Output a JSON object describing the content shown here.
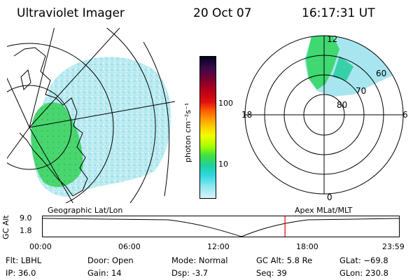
{
  "header": {
    "title": "Ultraviolet Imager",
    "date": "20 Oct 07",
    "time": "16:17:31 UT"
  },
  "colorbar": {
    "unit": "photon cm⁻²s⁻¹",
    "ticks": [
      "100",
      "10"
    ],
    "colors": [
      "#000022",
      "#3a0a4a",
      "#7a0030",
      "#b8001a",
      "#e01010",
      "#ff5a00",
      "#ff9a00",
      "#ffd000",
      "#f0ff00",
      "#a8ff00",
      "#40e040",
      "#20d0a0",
      "#30d8e0",
      "#90e8f0",
      "#d8f4f8"
    ]
  },
  "polar_plot": {
    "labels": {
      "top": "12",
      "left": "18",
      "right": "6",
      "bottom": "0"
    },
    "rings": [
      "80",
      "70",
      "60"
    ]
  },
  "timeline": {
    "left_label": "Geographic Lat/Lon",
    "right_label": "Apex MLat/MLT",
    "axis_title": "GC Alt",
    "y_ticks": [
      "9.0",
      "1.8"
    ],
    "x_ticks": [
      "00:00",
      "06:00",
      "12:00",
      "18:00",
      "23:59"
    ],
    "current_time_fraction": 0.6787,
    "marker_color": "#e00000"
  },
  "info": {
    "filter": "Flt: LBHL",
    "ip": "IP: 36.0",
    "door": "Door: Open",
    "gain": "Gain: 14",
    "mode": "Mode: Normal",
    "dsp": "Dsp:   -3.7",
    "gc_alt": "GC Alt: 5.8 Re",
    "seq": "Seq: 39",
    "glat": "GLat: −69.8",
    "glon": "GLon: 230.8"
  }
}
